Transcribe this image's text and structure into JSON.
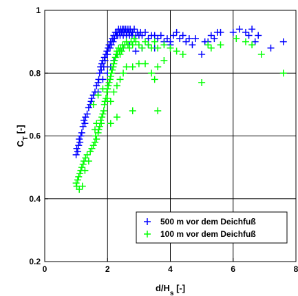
{
  "chart_data": {
    "type": "scatter",
    "title": "",
    "xlabel_main": "d/H",
    "xlabel_sub": "s",
    "xlabel_tail": " [-]",
    "ylabel_main": "C",
    "ylabel_sub": "T",
    "ylabel_tail": " [-]",
    "xlim": [
      0,
      8
    ],
    "ylim": [
      0.2,
      1.0
    ],
    "x_ticks": [
      0,
      2,
      4,
      6,
      8
    ],
    "y_ticks": [
      0.2,
      0.4,
      0.6,
      0.8,
      1.0
    ],
    "x_tick_labels": [
      "0",
      "2",
      "4",
      "6",
      "8"
    ],
    "y_tick_labels": [
      "0.2",
      "0.4",
      "0.6",
      "0.8",
      "1"
    ],
    "grid": true,
    "legend_position": "bottom-right",
    "marker": "plus",
    "series": [
      {
        "name": "500 m vor dem Deichfuß",
        "color": "#0000ff",
        "points": [
          [
            1.0,
            0.54
          ],
          [
            1.02,
            0.56
          ],
          [
            1.05,
            0.55
          ],
          [
            1.08,
            0.57
          ],
          [
            1.1,
            0.59
          ],
          [
            1.12,
            0.58
          ],
          [
            1.15,
            0.6
          ],
          [
            1.18,
            0.61
          ],
          [
            1.22,
            0.63
          ],
          [
            1.25,
            0.65
          ],
          [
            1.28,
            0.64
          ],
          [
            1.3,
            0.66
          ],
          [
            1.35,
            0.67
          ],
          [
            1.4,
            0.69
          ],
          [
            1.45,
            0.7
          ],
          [
            1.48,
            0.71
          ],
          [
            1.5,
            0.72
          ],
          [
            1.55,
            0.73
          ],
          [
            1.6,
            0.74
          ],
          [
            1.65,
            0.76
          ],
          [
            1.7,
            0.77
          ],
          [
            1.72,
            0.78
          ],
          [
            1.75,
            0.8
          ],
          [
            1.78,
            0.82
          ],
          [
            1.8,
            0.81
          ],
          [
            1.82,
            0.83
          ],
          [
            1.85,
            0.84
          ],
          [
            1.88,
            0.82
          ],
          [
            1.9,
            0.85
          ],
          [
            1.92,
            0.84
          ],
          [
            1.95,
            0.86
          ],
          [
            1.98,
            0.87
          ],
          [
            2.0,
            0.86
          ],
          [
            2.02,
            0.88
          ],
          [
            2.05,
            0.89
          ],
          [
            2.08,
            0.88
          ],
          [
            2.1,
            0.9
          ],
          [
            2.12,
            0.89
          ],
          [
            2.15,
            0.91
          ],
          [
            2.18,
            0.9
          ],
          [
            2.2,
            0.92
          ],
          [
            2.22,
            0.91
          ],
          [
            2.25,
            0.93
          ],
          [
            2.28,
            0.92
          ],
          [
            2.3,
            0.93
          ],
          [
            2.32,
            0.92
          ],
          [
            2.35,
            0.94
          ],
          [
            2.38,
            0.93
          ],
          [
            2.4,
            0.92
          ],
          [
            2.42,
            0.94
          ],
          [
            2.45,
            0.93
          ],
          [
            2.48,
            0.94
          ],
          [
            2.5,
            0.92
          ],
          [
            2.52,
            0.94
          ],
          [
            2.55,
            0.93
          ],
          [
            2.58,
            0.94
          ],
          [
            2.6,
            0.92
          ],
          [
            2.62,
            0.93
          ],
          [
            2.65,
            0.94
          ],
          [
            2.68,
            0.93
          ],
          [
            2.7,
            0.92
          ],
          [
            2.72,
            0.94
          ],
          [
            2.75,
            0.93
          ],
          [
            2.78,
            0.92
          ],
          [
            2.8,
            0.93
          ],
          [
            2.85,
            0.94
          ],
          [
            2.9,
            0.92
          ],
          [
            2.95,
            0.93
          ],
          [
            3.0,
            0.92
          ],
          [
            3.05,
            0.93
          ],
          [
            3.1,
            0.92
          ],
          [
            3.2,
            0.93
          ],
          [
            3.3,
            0.91
          ],
          [
            3.4,
            0.92
          ],
          [
            3.5,
            0.92
          ],
          [
            3.6,
            0.91
          ],
          [
            3.7,
            0.92
          ],
          [
            3.8,
            0.9
          ],
          [
            3.9,
            0.91
          ],
          [
            4.0,
            0.9
          ],
          [
            4.1,
            0.92
          ],
          [
            4.2,
            0.93
          ],
          [
            4.3,
            0.91
          ],
          [
            4.4,
            0.92
          ],
          [
            4.5,
            0.9
          ],
          [
            4.6,
            0.91
          ],
          [
            4.7,
            0.89
          ],
          [
            4.8,
            0.91
          ],
          [
            5.0,
            0.86
          ],
          [
            5.1,
            0.9
          ],
          [
            5.2,
            0.9
          ],
          [
            5.3,
            0.92
          ],
          [
            5.4,
            0.91
          ],
          [
            5.5,
            0.93
          ],
          [
            5.6,
            0.93
          ],
          [
            6.0,
            0.93
          ],
          [
            6.2,
            0.94
          ],
          [
            6.4,
            0.93
          ],
          [
            6.5,
            0.92
          ],
          [
            6.6,
            0.94
          ],
          [
            6.7,
            0.9
          ],
          [
            6.8,
            0.92
          ],
          [
            7.2,
            0.88
          ],
          [
            7.6,
            0.9
          ],
          [
            1.7,
            0.74
          ],
          [
            1.85,
            0.78
          ],
          [
            2.0,
            0.8
          ],
          [
            2.1,
            0.82
          ],
          [
            2.2,
            0.84
          ],
          [
            2.3,
            0.86
          ],
          [
            2.5,
            0.88
          ],
          [
            2.7,
            0.89
          ],
          [
            2.9,
            0.87
          ],
          [
            3.1,
            0.88
          ],
          [
            3.3,
            0.89
          ],
          [
            3.5,
            0.88
          ],
          [
            4.0,
            0.89
          ]
        ]
      },
      {
        "name": "100 m vor dem Deichfuß",
        "color": "#00ff00",
        "points": [
          [
            1.0,
            0.45
          ],
          [
            1.02,
            0.44
          ],
          [
            1.05,
            0.46
          ],
          [
            1.08,
            0.47
          ],
          [
            1.1,
            0.43
          ],
          [
            1.12,
            0.48
          ],
          [
            1.15,
            0.49
          ],
          [
            1.18,
            0.5
          ],
          [
            1.2,
            0.44
          ],
          [
            1.22,
            0.51
          ],
          [
            1.25,
            0.52
          ],
          [
            1.28,
            0.49
          ],
          [
            1.3,
            0.53
          ],
          [
            1.35,
            0.54
          ],
          [
            1.4,
            0.52
          ],
          [
            1.45,
            0.55
          ],
          [
            1.5,
            0.56
          ],
          [
            1.55,
            0.57
          ],
          [
            1.6,
            0.58
          ],
          [
            1.62,
            0.6
          ],
          [
            1.65,
            0.59
          ],
          [
            1.7,
            0.61
          ],
          [
            1.72,
            0.62
          ],
          [
            1.75,
            0.63
          ],
          [
            1.78,
            0.65
          ],
          [
            1.8,
            0.64
          ],
          [
            1.82,
            0.66
          ],
          [
            1.85,
            0.67
          ],
          [
            1.88,
            0.68
          ],
          [
            1.9,
            0.7
          ],
          [
            1.92,
            0.71
          ],
          [
            1.95,
            0.72
          ],
          [
            1.98,
            0.74
          ],
          [
            2.0,
            0.75
          ],
          [
            2.02,
            0.76
          ],
          [
            2.05,
            0.77
          ],
          [
            2.08,
            0.78
          ],
          [
            2.1,
            0.79
          ],
          [
            2.12,
            0.8
          ],
          [
            2.15,
            0.81
          ],
          [
            2.18,
            0.82
          ],
          [
            2.2,
            0.83
          ],
          [
            2.22,
            0.84
          ],
          [
            2.25,
            0.85
          ],
          [
            2.28,
            0.86
          ],
          [
            2.3,
            0.87
          ],
          [
            2.32,
            0.86
          ],
          [
            2.35,
            0.88
          ],
          [
            2.38,
            0.87
          ],
          [
            2.4,
            0.86
          ],
          [
            2.42,
            0.88
          ],
          [
            2.45,
            0.87
          ],
          [
            2.48,
            0.89
          ],
          [
            2.5,
            0.88
          ],
          [
            2.55,
            0.89
          ],
          [
            2.6,
            0.9
          ],
          [
            2.65,
            0.89
          ],
          [
            2.7,
            0.88
          ],
          [
            2.75,
            0.9
          ],
          [
            2.8,
            0.89
          ],
          [
            2.85,
            0.91
          ],
          [
            2.9,
            0.9
          ],
          [
            3.0,
            0.89
          ],
          [
            3.1,
            0.88
          ],
          [
            3.2,
            0.9
          ],
          [
            3.3,
            0.89
          ],
          [
            3.4,
            0.88
          ],
          [
            3.5,
            0.9
          ],
          [
            3.6,
            0.88
          ],
          [
            3.8,
            0.89
          ],
          [
            4.0,
            0.88
          ],
          [
            4.2,
            0.87
          ],
          [
            4.4,
            0.86
          ],
          [
            1.55,
            0.7
          ],
          [
            1.7,
            0.73
          ],
          [
            1.85,
            0.75
          ],
          [
            2.0,
            0.72
          ],
          [
            2.1,
            0.71
          ],
          [
            2.2,
            0.74
          ],
          [
            2.3,
            0.76
          ],
          [
            2.4,
            0.78
          ],
          [
            2.5,
            0.8
          ],
          [
            2.6,
            0.82
          ],
          [
            2.8,
            0.82
          ],
          [
            3.0,
            0.83
          ],
          [
            3.2,
            0.83
          ],
          [
            3.4,
            0.8
          ],
          [
            3.5,
            0.78
          ],
          [
            3.6,
            0.82
          ],
          [
            3.8,
            0.84
          ],
          [
            2.1,
            0.64
          ],
          [
            2.3,
            0.66
          ],
          [
            1.6,
            0.62
          ],
          [
            1.65,
            0.64
          ],
          [
            2.8,
            0.68
          ],
          [
            3.6,
            0.68
          ],
          [
            5.0,
            0.77
          ],
          [
            5.2,
            0.89
          ],
          [
            5.3,
            0.88
          ],
          [
            5.6,
            0.89
          ],
          [
            6.1,
            0.91
          ],
          [
            6.4,
            0.9
          ],
          [
            6.6,
            0.89
          ],
          [
            6.9,
            0.86
          ],
          [
            7.6,
            0.8
          ]
        ]
      }
    ]
  }
}
